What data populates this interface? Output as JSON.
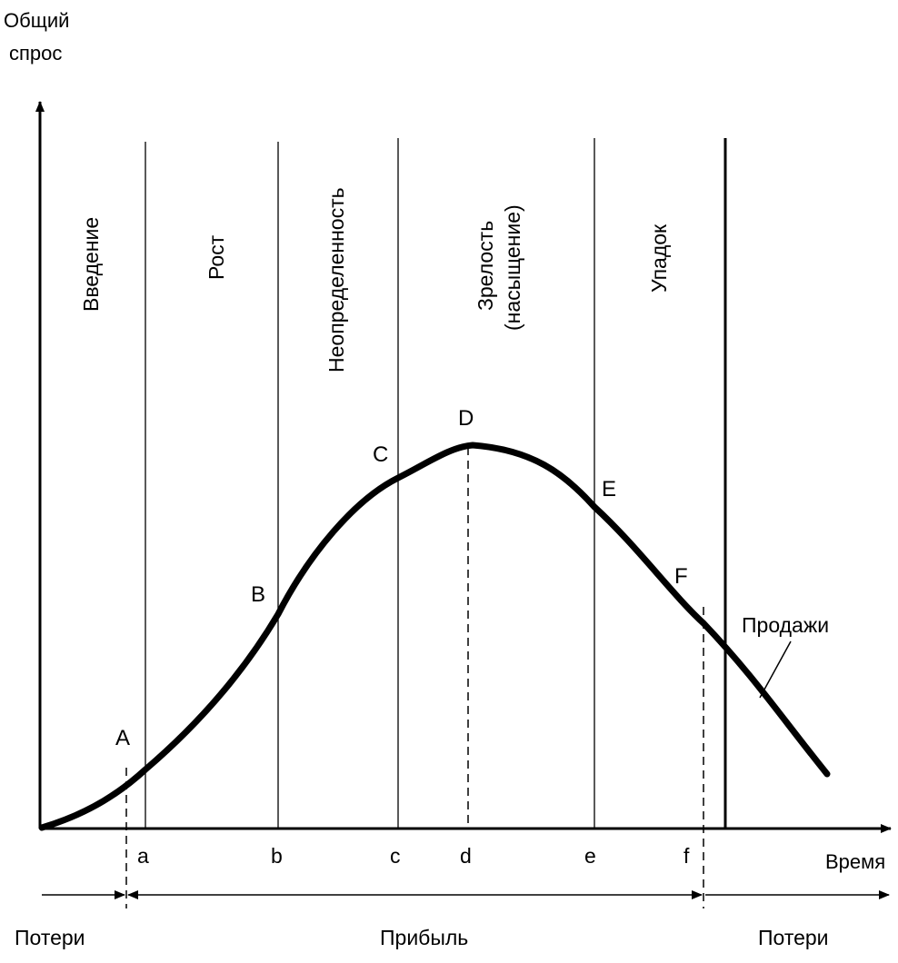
{
  "axes": {
    "y_title_line1": "Общий",
    "y_title_line2": "спрос",
    "x_title": "Время"
  },
  "stages": {
    "introduction": "Введение",
    "growth": "Рост",
    "uncertainty": "Неопределенность",
    "maturity_line1": "Зрелость",
    "maturity_line2": "(насыщение)",
    "decline": "Упадок"
  },
  "curve_points": {
    "A": "A",
    "B": "B",
    "C": "C",
    "D": "D",
    "E": "E",
    "F": "F"
  },
  "ticks": {
    "a": "a",
    "b": "b",
    "c": "c",
    "d": "d",
    "e": "e",
    "f": "f"
  },
  "curve_label": "Продажи",
  "profit_zones": {
    "loss_left": "Потери",
    "profit": "Прибыль",
    "loss_right": "Потери"
  }
}
